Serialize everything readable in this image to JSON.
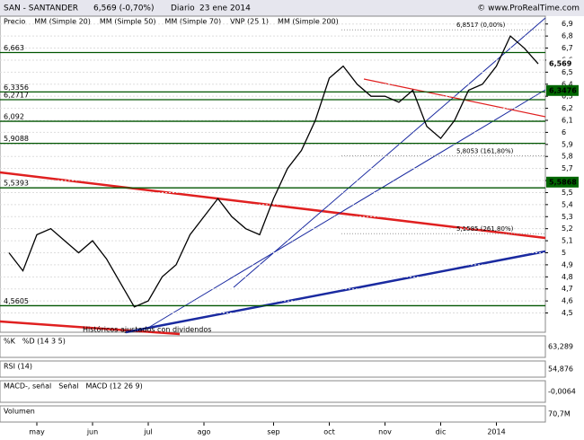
{
  "header": {
    "title": "SAN - SANTANDER",
    "quote": "6,569 (-0,70%)",
    "period": "Diario",
    "date": "23 ene 2014",
    "site": "© www.ProRealTime.com"
  },
  "legend": [
    "Precio",
    "MM (Simple 20)",
    "MM (Simple 50)",
    "MM (Simple 70)",
    "VNP (25 1)",
    "MM (Simple 200)"
  ],
  "chart_data": {
    "type": "line",
    "categories": [
      null,
      null,
      "may",
      null,
      null,
      null,
      "jun",
      null,
      null,
      null,
      "jul",
      null,
      null,
      null,
      "ago",
      null,
      null,
      null,
      null,
      "sep",
      null,
      null,
      null,
      "oct",
      null,
      null,
      null,
      "nov",
      null,
      null,
      null,
      "dic",
      null,
      null,
      null,
      "2014",
      null,
      null,
      null
    ],
    "series": [
      {
        "name": "Precio",
        "color": "#000000",
        "values": [
          5.0,
          4.85,
          5.15,
          5.2,
          5.1,
          5.0,
          5.1,
          4.95,
          4.75,
          4.55,
          4.6,
          4.8,
          4.9,
          5.15,
          5.3,
          5.45,
          5.3,
          5.2,
          5.15,
          5.45,
          5.7,
          5.85,
          6.1,
          6.45,
          6.55,
          6.4,
          6.3,
          6.3,
          6.25,
          6.35,
          6.05,
          5.95,
          6.1,
          6.35,
          6.4,
          6.55,
          6.8,
          6.7,
          6.569
        ]
      }
    ],
    "ylim": [
      4.34,
      6.965
    ],
    "yticks": [
      {
        "value": 4.5,
        "label": "4,5"
      },
      {
        "value": 4.6,
        "label": "4,6"
      },
      {
        "value": 4.7,
        "label": "4,7"
      },
      {
        "value": 4.8,
        "label": "4,8"
      },
      {
        "value": 4.9,
        "label": "4,9"
      },
      5,
      {
        "value": 5.1,
        "label": "5,1"
      },
      {
        "value": 5.2,
        "label": "5,2"
      },
      {
        "value": 5.3,
        "label": "5,3"
      },
      {
        "value": 5.4,
        "label": "5,4"
      },
      {
        "value": 5.5,
        "label": "5,5"
      },
      {
        "value": 5.6,
        "label": "5,6"
      },
      {
        "value": 5.7,
        "label": "5,7"
      },
      {
        "value": 5.8,
        "label": "5,8"
      },
      {
        "value": 5.9,
        "label": "5,9"
      },
      6,
      {
        "value": 6.1,
        "label": "6,1"
      },
      {
        "value": 6.2,
        "label": "6,2"
      },
      {
        "value": 6.3,
        "label": "6,3"
      },
      {
        "value": 6.4,
        "label": "6,4"
      },
      {
        "value": 6.5,
        "label": "6,5"
      },
      {
        "value": 6.6,
        "label": "6,6"
      },
      {
        "value": 6.7,
        "label": "6,7"
      },
      {
        "value": 6.8,
        "label": "6,8"
      },
      {
        "value": 6.9,
        "label": "6,9"
      }
    ],
    "grid": true,
    "levels": [
      {
        "value": 6.663,
        "label": "6,663"
      },
      {
        "value": 6.3356,
        "label": "6,3356"
      },
      {
        "value": 6.2717,
        "label": "6,2717"
      },
      {
        "value": 6.092,
        "label": "6,092"
      },
      {
        "value": 5.9088,
        "label": "5,9088"
      },
      {
        "value": 5.5393,
        "label": "5,5393"
      },
      {
        "value": 4.5605,
        "label": "4,5605"
      }
    ],
    "fibo": [
      {
        "value": 6.8517,
        "label": "6,8517 (0,00%)"
      },
      {
        "value": 5.8053,
        "label": "5,8053 (161,80%)"
      },
      {
        "value": 5.1585,
        "label": "5,1585 (261,80%)"
      }
    ],
    "last_price": {
      "value": 6.569,
      "label": "6,569"
    },
    "markers": [
      {
        "value": 6.3476,
        "label": "6,3476"
      },
      {
        "value": 5.5868,
        "label": "5,5868"
      }
    ],
    "annotation": "Históricos ajustados con dividendos"
  },
  "panels": [
    {
      "labels": [
        "%K",
        "%D (14 3 5)"
      ],
      "value": "63,289"
    },
    {
      "labels": [
        "RSI (14)"
      ],
      "value": "54,876"
    },
    {
      "labels": [
        "MACD-, señal",
        "Señal",
        "MACD (12 26 9)"
      ],
      "value": "-0,0064"
    },
    {
      "labels": [
        "Volumen"
      ],
      "value": "70,7M"
    }
  ]
}
